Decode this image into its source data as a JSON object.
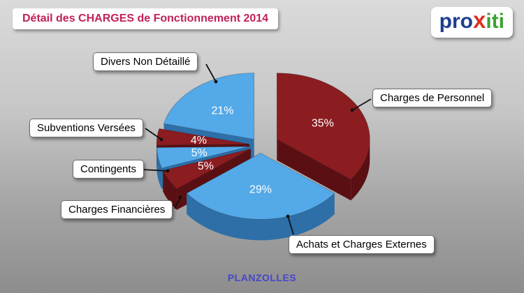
{
  "header": {
    "title": "Détail des CHARGES de Fonctionnement 2014",
    "title_color": "#c2205a"
  },
  "logo": {
    "pro": "pro",
    "x": "x",
    "iti": "iti",
    "colors": {
      "pro": "#1d3f8f",
      "x": "#d93325",
      "iti": "#3aa32f"
    }
  },
  "footer": {
    "text": "PLANZOLLES",
    "color": "#4545cf"
  },
  "chart_data": {
    "type": "pie",
    "style": "3d-exploded",
    "title": "Détail des CHARGES de Fonctionnement 2014",
    "unit": "%",
    "start_angle_deg": -90,
    "direction": "clockwise",
    "legend_position": "callout-labels",
    "labels_show": "percent",
    "slices": [
      {
        "label": "Charges de Personnel",
        "value": 35,
        "color": "#8b1c20",
        "side_color": "#5a1013",
        "explode": 26
      },
      {
        "label": "Achats et Charges Externes",
        "value": 29,
        "color": "#54a9e8",
        "side_color": "#2e6fa8",
        "explode": 16
      },
      {
        "label": "Charges Financières",
        "value": 5,
        "color": "#8b1c20",
        "side_color": "#5a1013",
        "explode": 16
      },
      {
        "label": "Contingents",
        "value": 5,
        "color": "#54a9e8",
        "side_color": "#2e6fa8",
        "explode": 16
      },
      {
        "label": "Subventions Versées",
        "value": 4,
        "color": "#8b1c20",
        "side_color": "#5a1013",
        "explode": 16
      },
      {
        "label": "Divers Non Détaillé",
        "value": 21,
        "color": "#54a9e8",
        "side_color": "#2e6fa8",
        "explode": 15
      }
    ]
  }
}
